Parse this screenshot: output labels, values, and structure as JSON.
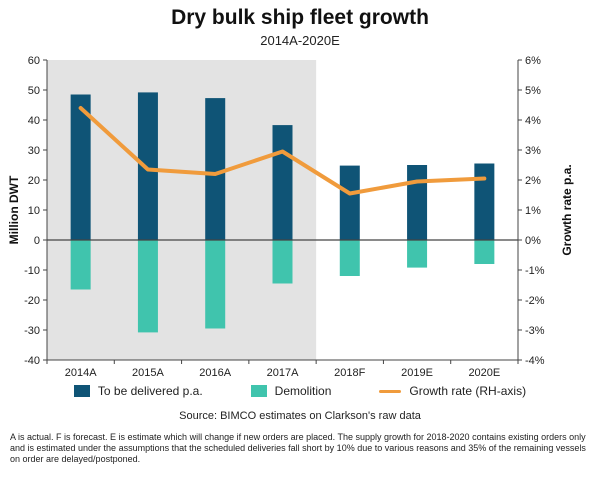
{
  "colors": {
    "delivered": "#0f5476",
    "demolition": "#40c4ad",
    "growth": "#f09b3c",
    "shade": "#e3e3e3"
  },
  "chart_data": {
    "type": "bar",
    "title": "Dry bulk ship fleet growth",
    "subtitle": "2014A-2020E",
    "categories": [
      "2014A",
      "2015A",
      "2016A",
      "2017A",
      "2018F",
      "2019E",
      "2020E"
    ],
    "series": [
      {
        "name": "To be delivered p.a.",
        "type": "bar",
        "axis": "left",
        "values": [
          48.5,
          49.2,
          47.3,
          38.3,
          24.8,
          25.0,
          25.5
        ]
      },
      {
        "name": "Demolition",
        "type": "bar",
        "axis": "left",
        "values": [
          -16.5,
          -30.8,
          -29.5,
          -14.5,
          -12.0,
          -9.2,
          -8.0
        ]
      },
      {
        "name": "Growth rate (RH-axis)",
        "type": "line",
        "axis": "right",
        "values": [
          4.4,
          2.35,
          2.2,
          2.95,
          1.55,
          1.95,
          2.05
        ]
      }
    ],
    "ylabel": "Million DWT",
    "ylim": [
      -40,
      60
    ],
    "y_ticks": [
      "60",
      "50",
      "40",
      "30",
      "20",
      "10",
      "0",
      "-10",
      "-20",
      "-30",
      "-40"
    ],
    "y2label": "Growth rate p.a.",
    "y2lim": [
      -4,
      6
    ],
    "y2_ticks": [
      "6%",
      "5%",
      "4%",
      "3%",
      "2%",
      "1%",
      "0%",
      "-1%",
      "-2%",
      "-3%",
      "-4%"
    ],
    "shaded_categories": [
      "2014A",
      "2015A",
      "2016A",
      "2017A"
    ],
    "legend": "bottom",
    "grid": false,
    "source": "Source: BIMCO estimates on Clarkson's raw data",
    "footnote": "A is actual. F is forecast. E is estimate which will change if new orders are placed. The supply growth for 2018-2020 contains existing orders only and is estimated under the assumptions that the scheduled deliveries fall short by 10% due to various reasons and 35% of the remaining vessels on order are delayed/postponed."
  }
}
